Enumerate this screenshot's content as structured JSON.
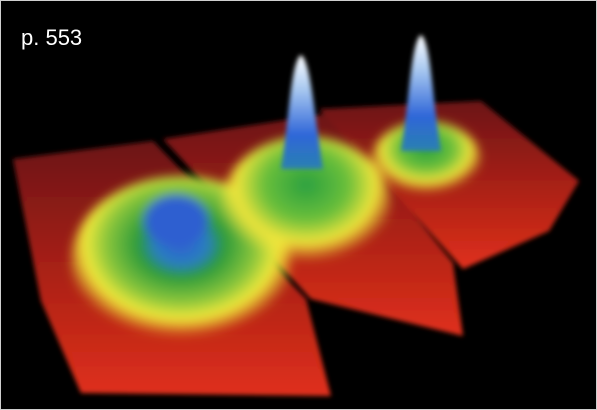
{
  "label": "p. 553"
}
